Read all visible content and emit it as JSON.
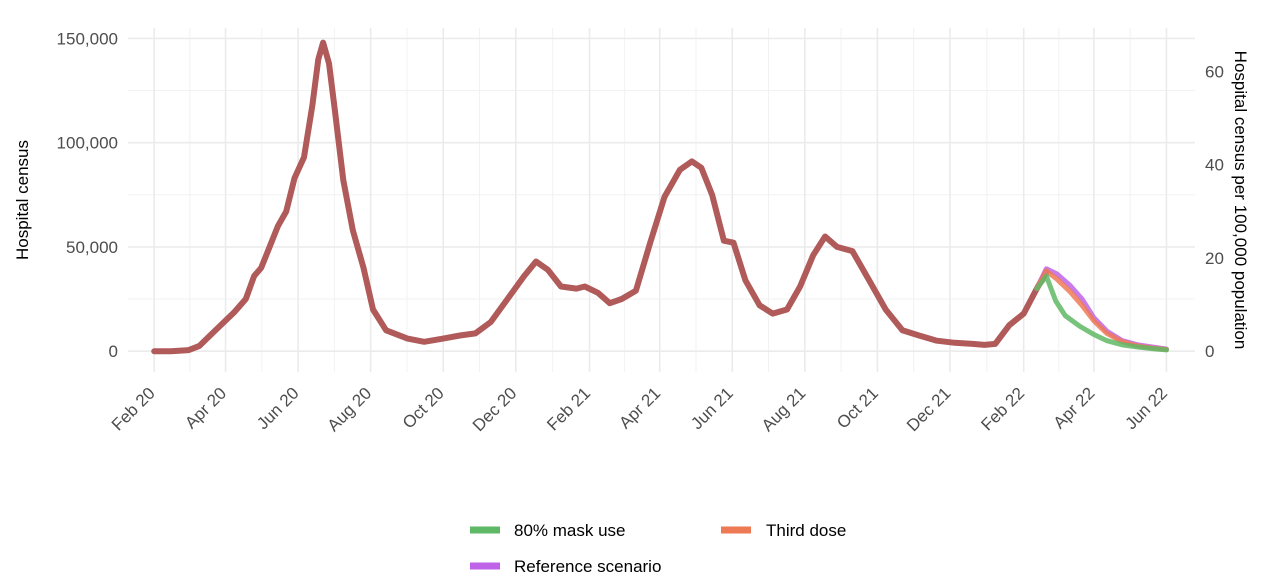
{
  "chart_data": {
    "type": "line",
    "ylabel": "Hospital census",
    "ylabel_right": "Hospital census per 100,000 population",
    "y_ticks": [
      {
        "value": 0,
        "label": "0"
      },
      {
        "value": 50000,
        "label": "50,000"
      },
      {
        "value": 100000,
        "label": "100,000"
      },
      {
        "value": 150000,
        "label": "150,000"
      }
    ],
    "y_right_ticks": [
      {
        "value": 0,
        "label": "0"
      },
      {
        "value": 20,
        "label": "20"
      },
      {
        "value": 40,
        "label": "40"
      },
      {
        "value": 60,
        "label": "60"
      }
    ],
    "right_axis_scale": "1 per 100,000 population = 2237 hospital census",
    "ylim": [
      -10000,
      155000
    ],
    "xlim": [
      "2020-01-10",
      "2022-06-25"
    ],
    "x_ticks": [
      {
        "date": "2020-02-01",
        "label": "Feb 20"
      },
      {
        "date": "2020-04-01",
        "label": "Apr 20"
      },
      {
        "date": "2020-06-01",
        "label": "Jun 20"
      },
      {
        "date": "2020-08-01",
        "label": "Aug 20"
      },
      {
        "date": "2020-10-01",
        "label": "Oct 20"
      },
      {
        "date": "2020-12-01",
        "label": "Dec 20"
      },
      {
        "date": "2021-02-01",
        "label": "Feb 21"
      },
      {
        "date": "2021-04-01",
        "label": "Apr 21"
      },
      {
        "date": "2021-06-01",
        "label": "Jun 21"
      },
      {
        "date": "2021-08-01",
        "label": "Aug 21"
      },
      {
        "date": "2021-10-01",
        "label": "Oct 21"
      },
      {
        "date": "2021-12-01",
        "label": "Dec 21"
      },
      {
        "date": "2022-02-01",
        "label": "Feb 22"
      },
      {
        "date": "2022-04-01",
        "label": "Apr 22"
      },
      {
        "date": "2022-06-01",
        "label": "Jun 22"
      }
    ],
    "grid": true,
    "legend_position": "bottom",
    "series": [
      {
        "id": "observed",
        "color": "#b05a5a",
        "points": [
          [
            "2020-02-01",
            0
          ],
          [
            "2020-02-15",
            0
          ],
          [
            "2020-03-01",
            500
          ],
          [
            "2020-03-10",
            2500
          ],
          [
            "2020-03-18",
            7000
          ],
          [
            "2020-03-28",
            12500
          ],
          [
            "2020-04-08",
            18500
          ],
          [
            "2020-04-18",
            25000
          ],
          [
            "2020-04-25",
            36000
          ],
          [
            "2020-05-01",
            40000
          ],
          [
            "2020-05-08",
            50000
          ],
          [
            "2020-05-15",
            60000
          ],
          [
            "2020-05-22",
            67000
          ],
          [
            "2020-05-29",
            83000
          ],
          [
            "2020-06-06",
            93000
          ],
          [
            "2020-06-13",
            118000
          ],
          [
            "2020-06-18",
            140000
          ],
          [
            "2020-06-22",
            148000
          ],
          [
            "2020-06-27",
            138000
          ],
          [
            "2020-07-02",
            115000
          ],
          [
            "2020-07-09",
            82000
          ],
          [
            "2020-07-17",
            58000
          ],
          [
            "2020-07-26",
            40000
          ],
          [
            "2020-08-03",
            20000
          ],
          [
            "2020-08-14",
            10000
          ],
          [
            "2020-09-01",
            6000
          ],
          [
            "2020-09-15",
            4500
          ],
          [
            "2020-10-01",
            6000
          ],
          [
            "2020-10-15",
            7500
          ],
          [
            "2020-10-28",
            8500
          ],
          [
            "2020-11-10",
            14000
          ],
          [
            "2020-11-24",
            25000
          ],
          [
            "2020-12-08",
            36000
          ],
          [
            "2020-12-18",
            43000
          ],
          [
            "2020-12-28",
            39000
          ],
          [
            "2021-01-08",
            31000
          ],
          [
            "2021-01-21",
            30000
          ],
          [
            "2021-01-28",
            31000
          ],
          [
            "2021-02-08",
            28000
          ],
          [
            "2021-02-18",
            23000
          ],
          [
            "2021-02-28",
            25000
          ],
          [
            "2021-03-12",
            29000
          ],
          [
            "2021-03-24",
            52000
          ],
          [
            "2021-04-05",
            74000
          ],
          [
            "2021-04-18",
            87000
          ],
          [
            "2021-04-28",
            91000
          ],
          [
            "2021-05-06",
            88000
          ],
          [
            "2021-05-15",
            75000
          ],
          [
            "2021-05-25",
            53000
          ],
          [
            "2021-06-02",
            52000
          ],
          [
            "2021-06-12",
            34000
          ],
          [
            "2021-06-24",
            22000
          ],
          [
            "2021-07-05",
            18000
          ],
          [
            "2021-07-17",
            20000
          ],
          [
            "2021-07-28",
            31000
          ],
          [
            "2021-08-08",
            46000
          ],
          [
            "2021-08-18",
            55000
          ],
          [
            "2021-08-28",
            50000
          ],
          [
            "2021-09-10",
            48000
          ],
          [
            "2021-09-24",
            34000
          ],
          [
            "2021-10-08",
            20000
          ],
          [
            "2021-10-22",
            10000
          ],
          [
            "2021-11-05",
            7500
          ],
          [
            "2021-11-20",
            5000
          ],
          [
            "2021-12-05",
            4000
          ],
          [
            "2021-12-20",
            3500
          ],
          [
            "2021-12-30",
            3000
          ],
          [
            "2022-01-08",
            3500
          ],
          [
            "2022-01-20",
            12500
          ],
          [
            "2022-02-01",
            18000
          ],
          [
            "2022-02-12",
            30000
          ],
          [
            "2022-02-20",
            38000
          ]
        ]
      },
      {
        "id": "reference",
        "name": "Reference scenario",
        "color": "#bf64e8",
        "points": [
          [
            "2022-02-12",
            30000
          ],
          [
            "2022-02-20",
            39500
          ],
          [
            "2022-03-01",
            37000
          ],
          [
            "2022-03-12",
            31500
          ],
          [
            "2022-03-22",
            25000
          ],
          [
            "2022-04-01",
            16000
          ],
          [
            "2022-04-12",
            9500
          ],
          [
            "2022-04-25",
            5000
          ],
          [
            "2022-05-08",
            3000
          ],
          [
            "2022-05-20",
            2000
          ],
          [
            "2022-06-01",
            1000
          ]
        ]
      },
      {
        "id": "third_dose",
        "name": "Third dose",
        "color": "#ed7a55",
        "points": [
          [
            "2022-02-12",
            30000
          ],
          [
            "2022-02-20",
            38500
          ],
          [
            "2022-03-01",
            34500
          ],
          [
            "2022-03-12",
            28500
          ],
          [
            "2022-03-22",
            22000
          ],
          [
            "2022-04-01",
            14500
          ],
          [
            "2022-04-12",
            8500
          ],
          [
            "2022-04-25",
            4500
          ],
          [
            "2022-05-08",
            2500
          ],
          [
            "2022-05-20",
            1500
          ],
          [
            "2022-06-01",
            800
          ]
        ]
      },
      {
        "id": "mask",
        "name": "80% mask use",
        "color": "#5fb865",
        "points": [
          [
            "2022-02-12",
            30000
          ],
          [
            "2022-02-20",
            36000
          ],
          [
            "2022-02-28",
            24000
          ],
          [
            "2022-03-08",
            17000
          ],
          [
            "2022-03-20",
            12000
          ],
          [
            "2022-04-01",
            8000
          ],
          [
            "2022-04-12",
            5000
          ],
          [
            "2022-04-25",
            3000
          ],
          [
            "2022-05-08",
            2000
          ],
          [
            "2022-05-20",
            1200
          ],
          [
            "2022-06-01",
            600
          ]
        ]
      }
    ]
  },
  "legend": {
    "items": [
      {
        "label": "80% mask use",
        "color": "#5fb865"
      },
      {
        "label": "Third dose",
        "color": "#ed7a55"
      },
      {
        "label": "Reference scenario",
        "color": "#bf64e8"
      }
    ]
  }
}
